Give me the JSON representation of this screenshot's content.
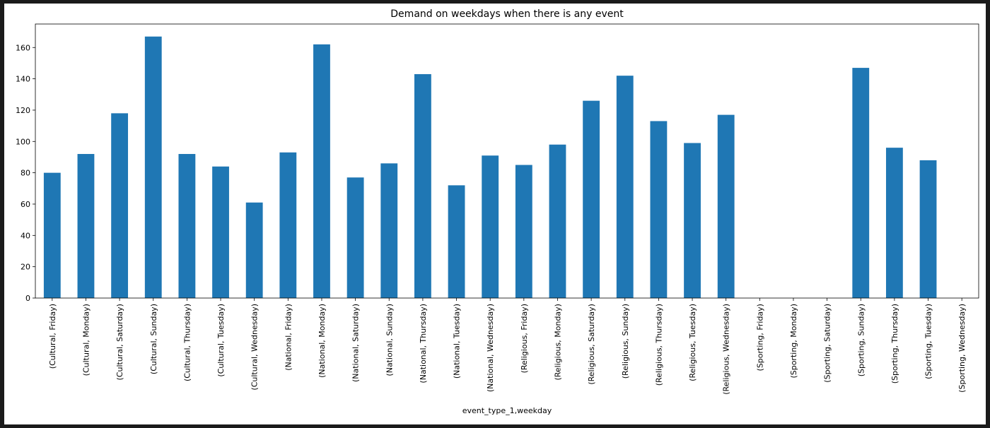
{
  "chart_data": {
    "type": "bar",
    "title": "Demand on weekdays when there is any event",
    "xlabel": "event_type_1,weekday",
    "ylabel": "",
    "ylim": [
      0,
      175
    ],
    "yticks": [
      0,
      20,
      40,
      60,
      80,
      100,
      120,
      140,
      160
    ],
    "grid": false,
    "bar_color": "#1f77b4",
    "categories": [
      "(Cultural, Friday)",
      "(Cultural, Monday)",
      "(Cultural, Saturday)",
      "(Cultural, Sunday)",
      "(Cultural, Thursday)",
      "(Cultural, Tuesday)",
      "(Cultural, Wednesday)",
      "(National, Friday)",
      "(National, Monday)",
      "(National, Saturday)",
      "(National, Sunday)",
      "(National, Thursday)",
      "(National, Tuesday)",
      "(National, Wednesday)",
      "(Religious, Friday)",
      "(Religious, Monday)",
      "(Religious, Saturday)",
      "(Religious, Sunday)",
      "(Religious, Thursday)",
      "(Religious, Tuesday)",
      "(Religious, Wednesday)",
      "(Sporting, Friday)",
      "(Sporting, Monday)",
      "(Sporting, Saturday)",
      "(Sporting, Sunday)",
      "(Sporting, Thursday)",
      "(Sporting, Tuesday)",
      "(Sporting, Wednesday)"
    ],
    "values": [
      80,
      92,
      118,
      167,
      92,
      84,
      61,
      93,
      162,
      77,
      86,
      143,
      72,
      91,
      85,
      98,
      126,
      142,
      113,
      99,
      117,
      0,
      0,
      0,
      147,
      96,
      88,
      0
    ]
  }
}
